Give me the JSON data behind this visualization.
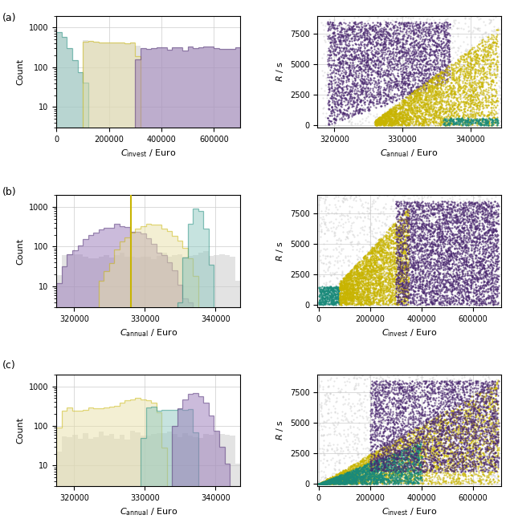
{
  "c_teal_edge": "#1a8a7a",
  "c_teal_fill": "#8ec8c0",
  "c_yellow_edge": "#c8b400",
  "c_yellow_fill": "#e8e0a8",
  "c_purple_edge": "#4a2870",
  "c_purple_fill": "#9878b8",
  "c_gray_fill": "#cccccc",
  "c_gray_edge": "#aaaaaa",
  "c_green_edge": "#3a8050",
  "c_green_fill": "#98c888",
  "row_labels": [
    "(a)",
    "(b)",
    "(c)"
  ],
  "seed": 12345,
  "figsize": [
    6.4,
    6.52
  ]
}
